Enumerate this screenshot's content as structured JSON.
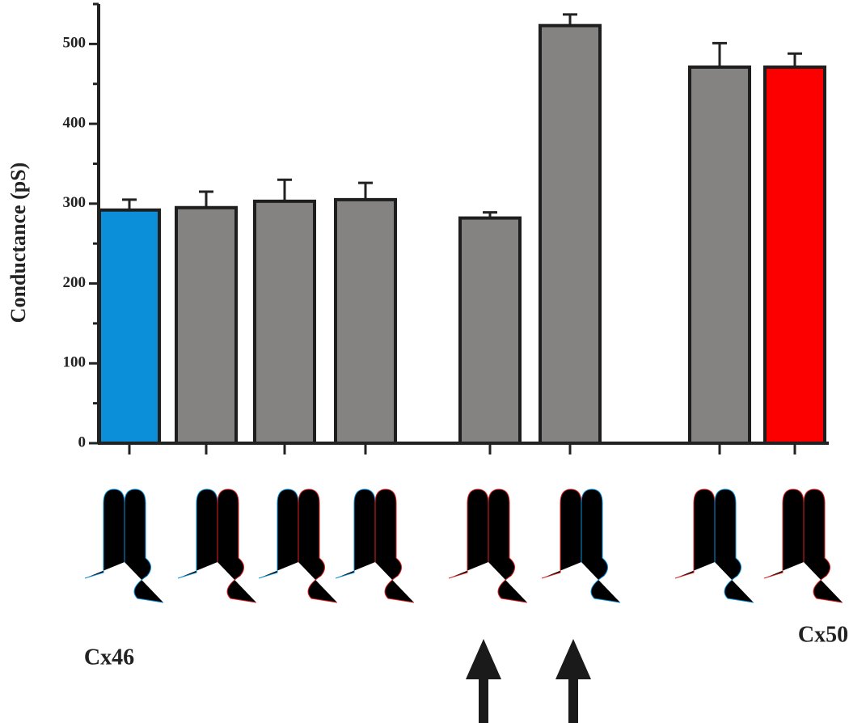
{
  "chart_data": {
    "type": "bar",
    "y_label": "Conductance (pS)",
    "categories": [
      null,
      null,
      null,
      null,
      null,
      null,
      null,
      null
    ],
    "values": [
      292,
      295,
      303,
      305,
      282,
      523,
      471,
      471
    ],
    "errors": [
      13,
      20,
      27,
      21,
      7,
      14,
      30,
      17
    ],
    "colors": [
      "#0a8fd8",
      "#858282",
      "#858282",
      "#858282",
      "#858282",
      "#858282",
      "#858282",
      "#fc0000"
    ],
    "ylim": [
      0,
      550
    ],
    "yticks": [
      0,
      100,
      200,
      300,
      400,
      500
    ],
    "minor_yticks": [
      50,
      150,
      250,
      350,
      450,
      550
    ],
    "annotations": [
      "Cx46",
      "Cx50"
    ]
  }
}
